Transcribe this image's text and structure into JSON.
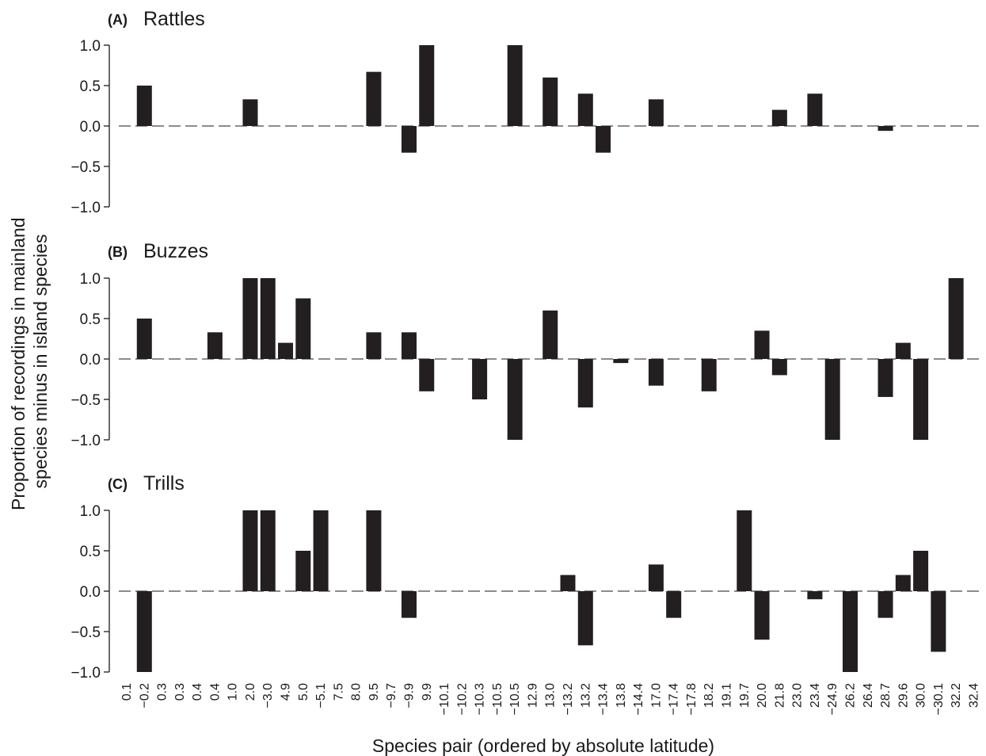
{
  "y_axis_title_line1": "Proportion of recordings in mainland",
  "y_axis_title_line2": "species minus in island species",
  "x_axis_title": "Species pair (ordered by absolute latitude)",
  "x_tick_labels": [
    "0.1",
    "−0.2",
    "0.3",
    "0.3",
    "0.4",
    "0.4",
    "1.0",
    "2.0",
    "−3.0",
    "4.9",
    "5.0",
    "−5.1",
    "7.5",
    "8.0",
    "9.5",
    "−9.7",
    "−9.9",
    "9.9",
    "−10.1",
    "−10.2",
    "−10.3",
    "−10.5",
    "−10.5",
    "12.9",
    "13.0",
    "−13.2",
    "13.2",
    "−13.4",
    "13.8",
    "−14.4",
    "17.0",
    "−17.4",
    "−17.8",
    "18.2",
    "19.1",
    "19.7",
    "20.0",
    "21.8",
    "23.0",
    "23.4",
    "−24.9",
    "26.2",
    "26.4",
    "28.7",
    "29.6",
    "30.0",
    "−30.1",
    "32.2",
    "32.4"
  ],
  "y_tick_labels": [
    "1.0",
    "0.5",
    "0.0",
    "−0.5",
    "−1.0"
  ],
  "colors": {
    "bar": "#231f20",
    "axis": "#1a1a1a",
    "zero_line": "#1a1a1a"
  },
  "chart_data": [
    {
      "type": "bar",
      "panel_letter": "(A)",
      "title": "Rattles",
      "ylim": [
        -1.0,
        1.0
      ],
      "yticks": [
        1.0,
        0.5,
        0.0,
        -0.5,
        -1.0
      ],
      "values": [
        0,
        0.5,
        0,
        0,
        0,
        0,
        0,
        0.33,
        0,
        0,
        0,
        0,
        0,
        0,
        0.67,
        0,
        -0.33,
        1.0,
        0,
        0,
        0,
        0,
        1.0,
        0,
        0.6,
        0,
        0.4,
        -0.33,
        0,
        0,
        0.33,
        0,
        0,
        0,
        0,
        0,
        0,
        0.2,
        0,
        0.4,
        0,
        0,
        0,
        -0.06,
        0,
        0,
        0,
        0,
        0
      ]
    },
    {
      "type": "bar",
      "panel_letter": "(B)",
      "title": "Buzzes",
      "ylim": [
        -1.0,
        1.0
      ],
      "yticks": [
        1.0,
        0.5,
        0.0,
        -0.5,
        -1.0
      ],
      "values": [
        0,
        0.5,
        0,
        0,
        0,
        0.33,
        0,
        1.0,
        1.0,
        0.2,
        0.75,
        0,
        0,
        0,
        0.33,
        0,
        0.33,
        -0.4,
        0,
        0,
        -0.5,
        0,
        -1.0,
        0,
        0.6,
        0,
        -0.6,
        0,
        -0.05,
        0,
        -0.33,
        0,
        0,
        -0.4,
        0,
        0,
        0.35,
        -0.2,
        0,
        0,
        -1.0,
        0,
        0,
        -0.47,
        0.2,
        -1.0,
        0,
        1.0,
        0
      ]
    },
    {
      "type": "bar",
      "panel_letter": "(C)",
      "title": "Trills",
      "ylim": [
        -1.0,
        1.0
      ],
      "yticks": [
        1.0,
        0.5,
        0.0,
        -0.5,
        -1.0
      ],
      "values": [
        0,
        -1.0,
        0,
        0,
        0,
        0,
        0,
        1.0,
        1.0,
        0,
        0.5,
        1.0,
        0,
        0,
        1.0,
        0,
        -0.33,
        0,
        0,
        0,
        0,
        0,
        0,
        0,
        0,
        0.2,
        -0.67,
        0,
        0,
        0,
        0.33,
        -0.33,
        0,
        0,
        0,
        1.0,
        -0.6,
        0,
        0,
        -0.1,
        0,
        -1.0,
        0,
        -0.33,
        0.2,
        0.5,
        -0.75,
        0,
        0
      ]
    }
  ]
}
